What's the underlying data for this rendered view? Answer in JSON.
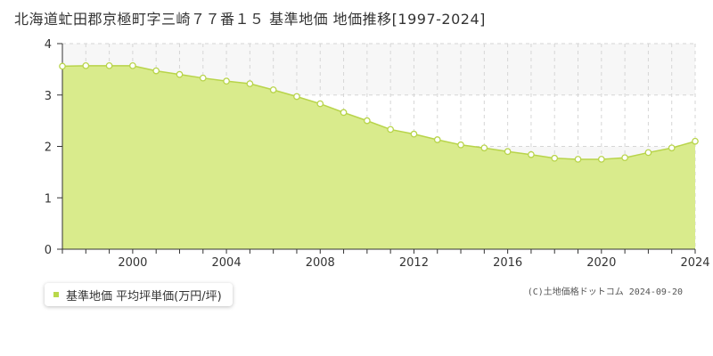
{
  "title": "北海道虻田郡京極町字三崎７７番１５ 基準地価 地価推移[1997-2024]",
  "legend": {
    "label": "基準地価 平均坪単価(万円/坪)"
  },
  "credit": "(C)土地価格ドットコム 2024-09-20",
  "colors": {
    "fill": "#d9eb8c",
    "line": "#b8d44a",
    "marker_fill": "#ffffff",
    "marker_stroke": "#b8d44a",
    "band": "#f7f7f7",
    "grid": "#d6d6d6",
    "axis": "#333333"
  },
  "chart_data": {
    "type": "area",
    "x": [
      1997,
      1998,
      1999,
      2000,
      2001,
      2002,
      2003,
      2004,
      2005,
      2006,
      2007,
      2008,
      2009,
      2010,
      2011,
      2012,
      2013,
      2014,
      2015,
      2016,
      2017,
      2018,
      2019,
      2020,
      2021,
      2022,
      2023,
      2024
    ],
    "series": [
      {
        "name": "基準地価 平均坪単価(万円/坪)",
        "values": [
          3.56,
          3.57,
          3.57,
          3.57,
          3.47,
          3.4,
          3.33,
          3.27,
          3.22,
          3.1,
          2.97,
          2.83,
          2.66,
          2.5,
          2.33,
          2.24,
          2.13,
          2.03,
          1.97,
          1.9,
          1.84,
          1.77,
          1.75,
          1.75,
          1.78,
          1.88,
          1.97,
          2.1
        ]
      }
    ],
    "xticks": [
      "2000",
      "2004",
      "2008",
      "2012",
      "2016",
      "2020",
      "2024"
    ],
    "yticks": [
      "0",
      "1",
      "2",
      "3",
      "4"
    ],
    "xlim": [
      1997,
      2024
    ],
    "ylim": [
      0,
      4
    ],
    "xlabel": "",
    "ylabel": "",
    "grid": true,
    "legend_position": "bottom-left"
  }
}
